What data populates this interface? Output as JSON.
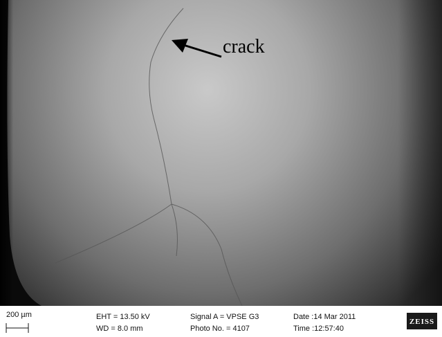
{
  "annotation": "crack",
  "info_bar": {
    "scale": "200 µm",
    "eht": "EHT = 13.50 kV",
    "wd": "WD = 8.0 mm",
    "signal": "Signal A = VPSE G3",
    "photo": "Photo No. = 4107",
    "date": "Date :14 Mar 2011",
    "time": "Time :12:57:40",
    "logo": "ZEISS"
  }
}
